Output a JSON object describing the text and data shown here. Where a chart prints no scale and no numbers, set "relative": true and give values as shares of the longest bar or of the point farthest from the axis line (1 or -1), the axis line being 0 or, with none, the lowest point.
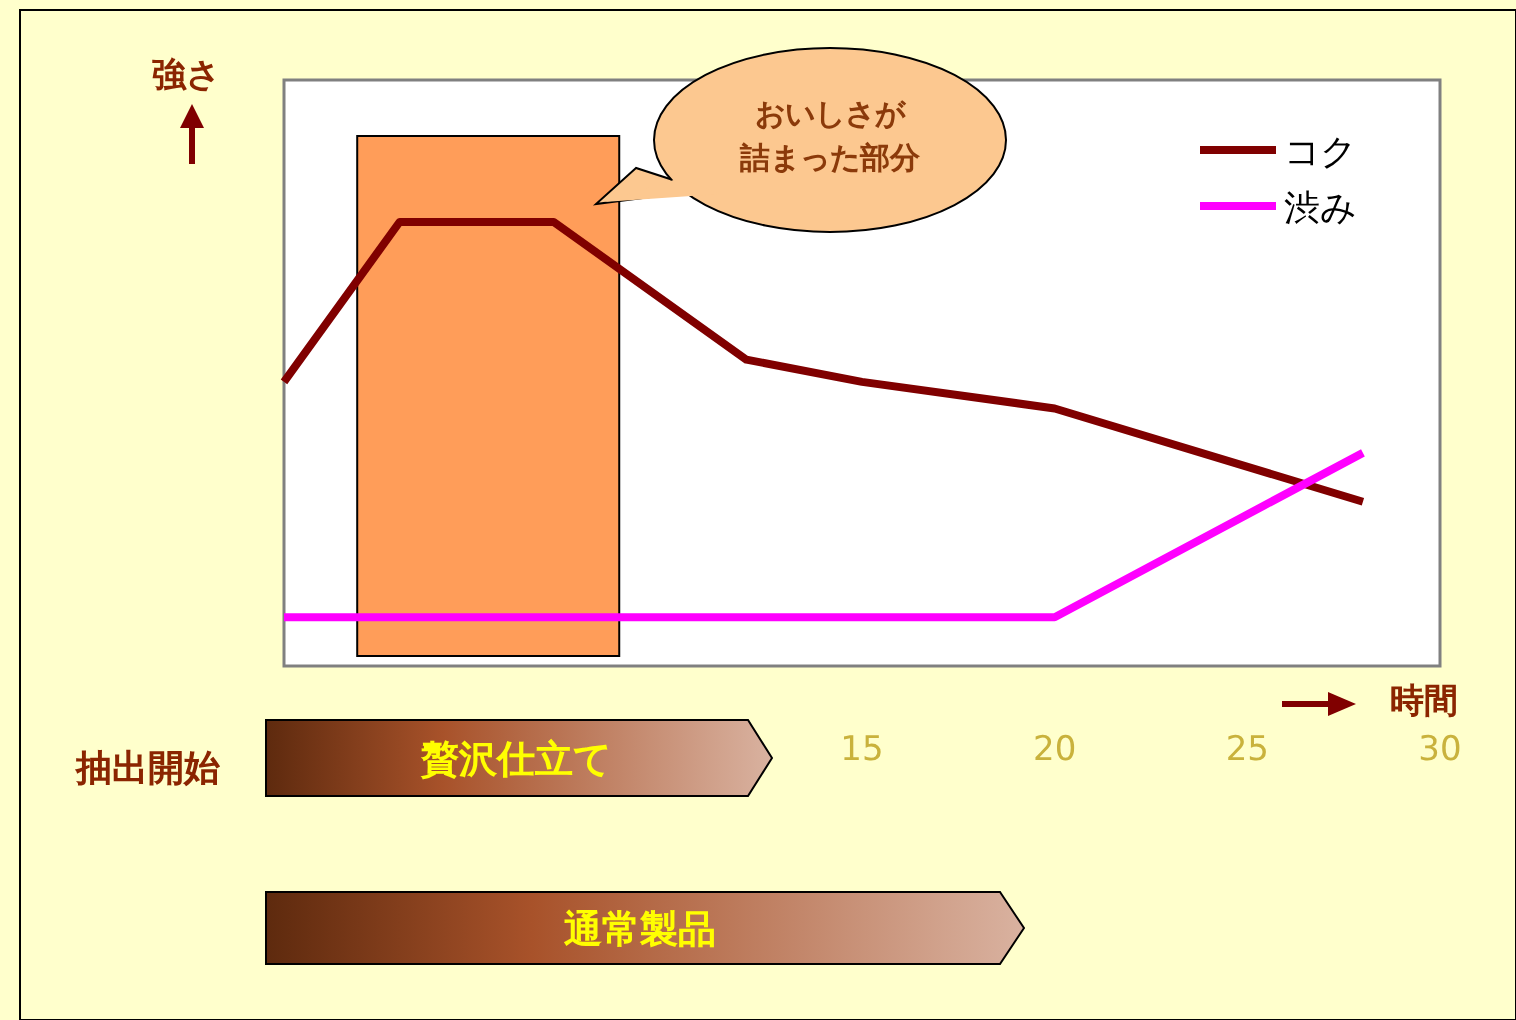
{
  "chart_data": {
    "type": "line",
    "relative": true,
    "xlabel": "時間",
    "ylabel": "強さ",
    "x": [
      0,
      3,
      7,
      12,
      15,
      20,
      28
    ],
    "xlim": [
      0,
      30
    ],
    "xticks": [
      15,
      20,
      25,
      30
    ],
    "series": [
      {
        "name": "コク",
        "color": "#800000",
        "values": [
          0.64,
          1,
          1,
          0.69,
          0.64,
          0.58,
          0.37
        ]
      },
      {
        "name": "渋み",
        "color": "#ff00ff",
        "x": [
          0,
          20,
          28
        ],
        "values": [
          0.11,
          0.11,
          0.48
        ]
      }
    ],
    "bands": [
      {
        "axis": "x",
        "from": 1.9,
        "to": 8.7,
        "color": "#ff8c3c"
      }
    ],
    "annotations": [
      "おいしさが詰まった部分",
      "抽出開始",
      "贅沢仕立て",
      "通常製品"
    ],
    "legend": "top right",
    "grid": false
  }
}
